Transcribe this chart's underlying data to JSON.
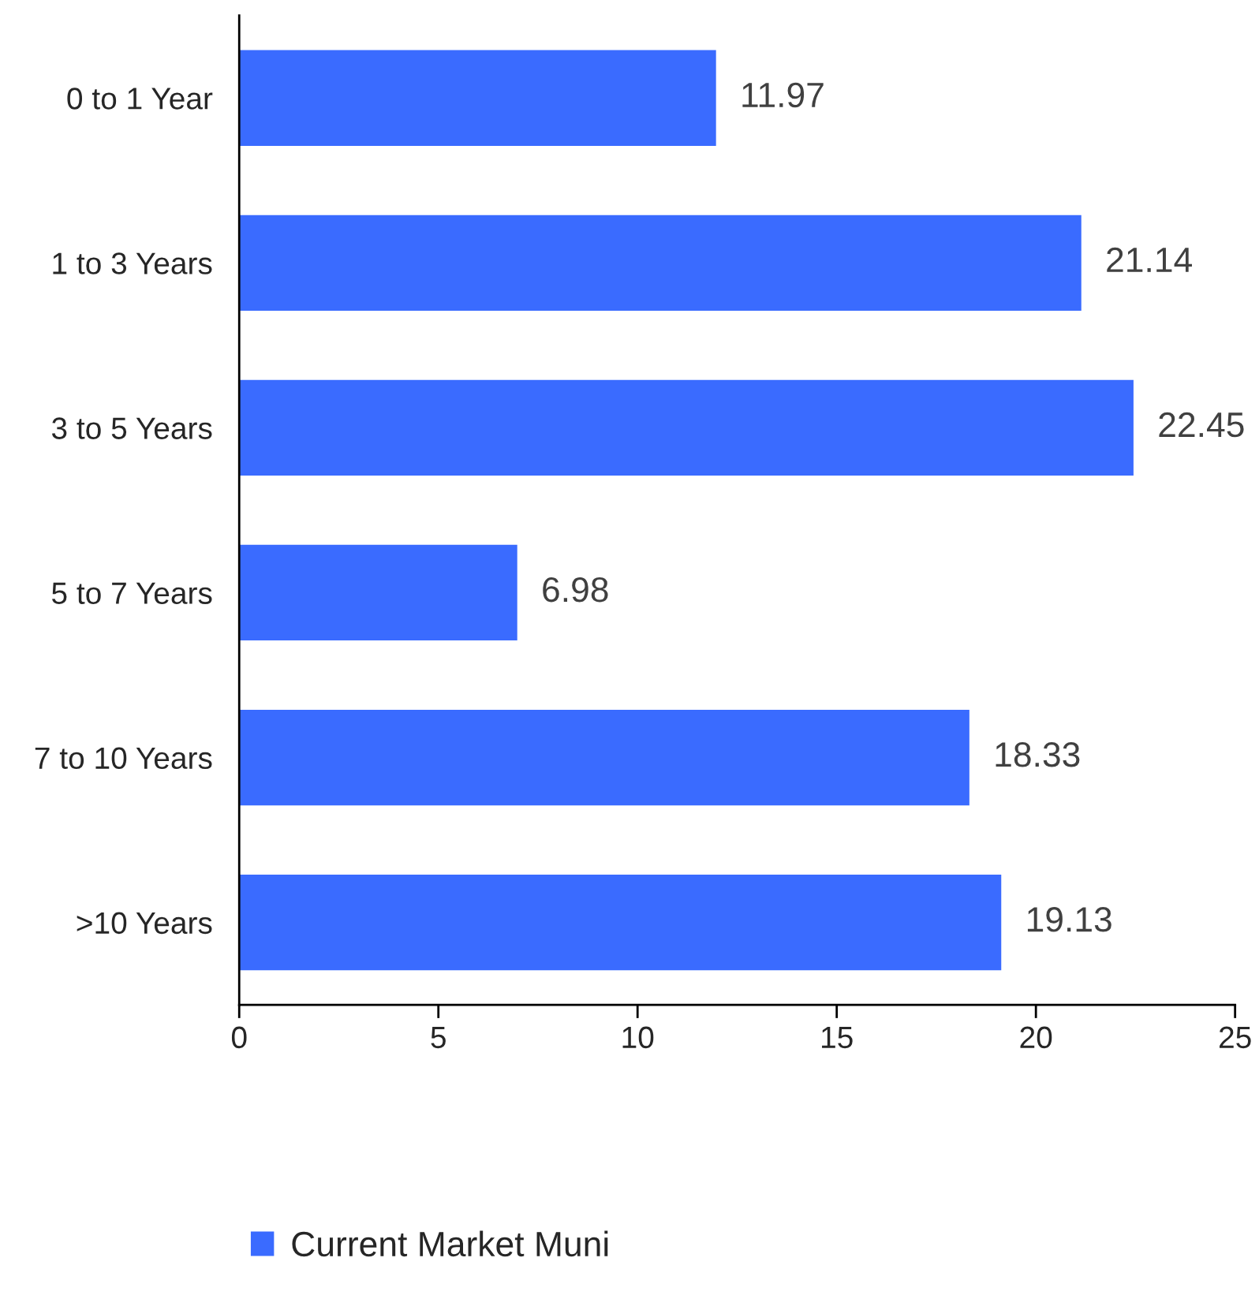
{
  "chart_data": {
    "type": "bar",
    "orientation": "horizontal",
    "categories": [
      "0 to 1 Year",
      "1 to 3 Years",
      "3 to 5 Years",
      "5 to 7 Years",
      "7 to 10 Years",
      ">10 Years"
    ],
    "series": [
      {
        "name": "Current Market Muni",
        "color": "#3a6bff",
        "values": [
          11.97,
          21.14,
          22.45,
          6.98,
          18.33,
          19.13
        ]
      }
    ],
    "xlim": [
      0,
      25
    ],
    "xticks": [
      0,
      5,
      10,
      15,
      20,
      25
    ],
    "data_labels": true,
    "grid": false,
    "legend": "bottom"
  }
}
